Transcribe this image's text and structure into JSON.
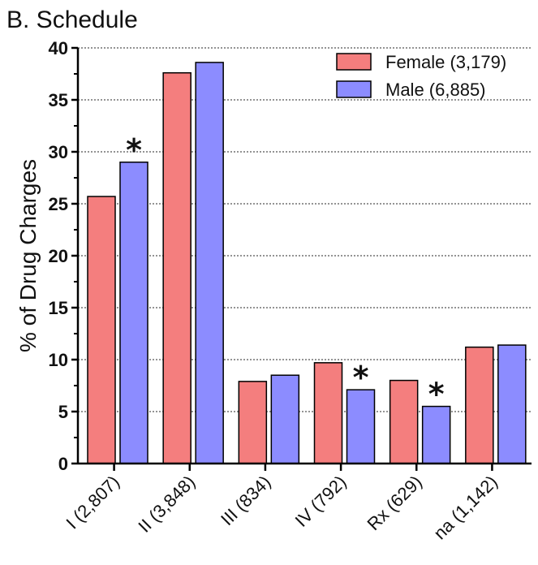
{
  "chart_data": {
    "type": "bar",
    "title": "B. Schedule",
    "ylabel": "% of Drug Charges",
    "xlabel": "",
    "ylim": [
      0,
      40
    ],
    "yticks": [
      0,
      5,
      10,
      15,
      20,
      25,
      30,
      35,
      40
    ],
    "grid": "horizontal-dotted",
    "legend_position": "top-right",
    "categories": [
      "I (2,807)",
      "II (3,848)",
      "III (834)",
      "IV (792)",
      "Rx (629)",
      "na (1,142)"
    ],
    "series": [
      {
        "name": "Female (3,179)",
        "color": "#f47e7e",
        "values": [
          25.7,
          37.6,
          7.9,
          9.7,
          8.0,
          11.2
        ]
      },
      {
        "name": "Male (6,885)",
        "color": "#8c8cff",
        "values": [
          29.0,
          38.6,
          8.5,
          7.1,
          5.5,
          11.4
        ]
      }
    ],
    "annotations": [
      {
        "text": "*",
        "category": "I (2,807)",
        "series": "Male (6,885)"
      },
      {
        "text": "*",
        "category": "IV (792)",
        "series": "Male (6,885)"
      },
      {
        "text": "*",
        "category": "Rx (629)",
        "series": "Male (6,885)"
      }
    ]
  }
}
